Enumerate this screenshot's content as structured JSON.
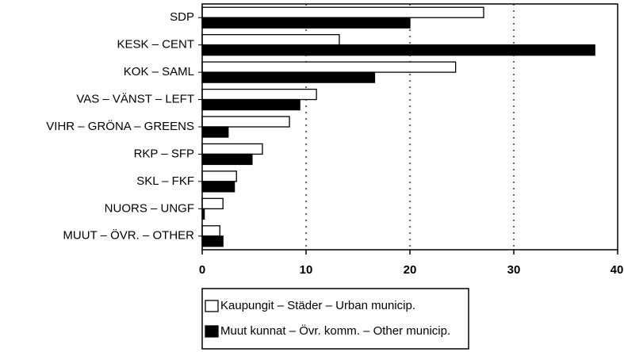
{
  "chart_data": {
    "type": "hbar",
    "categories": [
      "SDP",
      "KESK – CENT",
      "KOK – SAML",
      "VAS – VÄNST – LEFT",
      "VIHR – GRÖNA – GREENS",
      "RKP – SFP",
      "SKL – FKF",
      "NUORS – UNGF",
      "MUUT – ÖVR. – OTHER"
    ],
    "series": [
      {
        "name": "Kaupungit – Städer – Urban municip.",
        "color": "#ffffff",
        "values": [
          27.1,
          13.2,
          24.4,
          11.0,
          8.4,
          5.8,
          3.3,
          2.0,
          1.7
        ]
      },
      {
        "name": "Muut kunnat – Övr. komm. – Other municip.",
        "color": "#000000",
        "values": [
          20.0,
          37.8,
          16.6,
          9.4,
          2.5,
          4.8,
          3.1,
          0.2,
          2.0
        ]
      }
    ],
    "xlim": [
      0,
      40
    ],
    "xticks": [
      0,
      10,
      20,
      30,
      40
    ],
    "grid": true
  }
}
